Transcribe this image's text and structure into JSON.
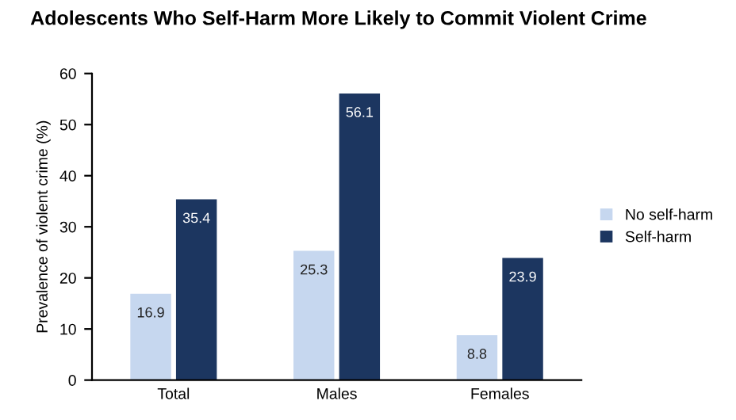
{
  "chart_data": {
    "type": "bar",
    "title": "Adolescents Who Self-Harm More Likely to Commit Violent Crime",
    "ylabel": "Prevalence of violent crime (%)",
    "categories": [
      "Total",
      "Males",
      "Females"
    ],
    "series": [
      {
        "name": "No self-harm",
        "color": "#c6d7ef",
        "values": [
          16.9,
          25.3,
          8.8
        ]
      },
      {
        "name": "Self-harm",
        "color": "#1c3660",
        "values": [
          35.4,
          56.1,
          23.9
        ]
      }
    ],
    "ylim": [
      0,
      60
    ],
    "yticks": [
      0,
      10,
      20,
      30,
      40,
      50,
      60
    ],
    "data_labels": true,
    "grid": false,
    "legend": "right"
  }
}
